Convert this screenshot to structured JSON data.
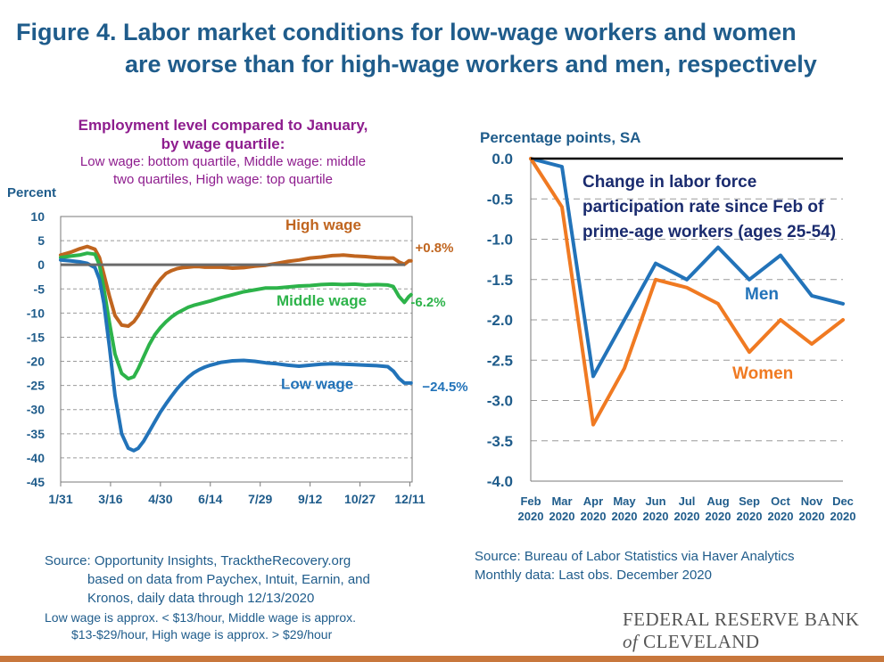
{
  "figure": {
    "title_line1": "Figure 4. Labor market conditions for low-wage workers and women",
    "title_line2": "are worse than for high-wage workers and men, respectively",
    "left_title_1": "Employment level compared to January,",
    "left_title_2": "by wage quartile:",
    "left_subtitle_1": "Low wage: bottom quartile, Middle wage: middle",
    "left_subtitle_2": "two quartiles, High wage: top quartile",
    "left_source_1": "Source: Opportunity Insights, TracktheRecovery.org",
    "left_source_2": "based on data from Paychex, Intuit, Earnin, and",
    "left_source_3": "Kronos, daily data through 12/13/2020",
    "left_note_1": "Low wage is approx. < $13/hour, Middle wage is approx.",
    "left_note_2": "$13-$29/hour, High wage is approx. > $29/hour",
    "right_source_1": "Source: Bureau of Labor Statistics via Haver Analytics",
    "right_source_2": "Monthly data: Last obs. December 2020",
    "logo_line1": "FEDERAL RESERVE BANK",
    "logo_of": "of",
    "logo_line2": "CLEVELAND",
    "colors": {
      "title": "#1f5c8b",
      "subtitle": "#8e1d8e",
      "high": "#c0651f",
      "middle": "#2db34a",
      "low": "#2273b9",
      "men": "#2273b9",
      "women": "#f07a22",
      "bar": "#c8773c"
    }
  },
  "chart_data": [
    {
      "type": "line",
      "ylabel": "Percent",
      "ylim": [
        -45,
        10
      ],
      "yticks": [
        10,
        5,
        0,
        -5,
        -10,
        -15,
        -20,
        -25,
        -30,
        -35,
        -40,
        -45
      ],
      "x_tick_labels": [
        "1/31",
        "3/16",
        "4/30",
        "6/14",
        "7/29",
        "9/12",
        "10/27",
        "12/11"
      ],
      "x_tick_days": [
        31,
        76,
        121,
        166,
        211,
        256,
        301,
        346
      ],
      "xlim_days": [
        31,
        348
      ],
      "grid": true,
      "series": [
        {
          "name": "High wage",
          "end_label": "+0.8%",
          "x": [
            31,
            40,
            48,
            55,
            62,
            66,
            70,
            75,
            80,
            86,
            92,
            97,
            101,
            106,
            111,
            116,
            121,
            126,
            131,
            136,
            141,
            146,
            151,
            156,
            161,
            166,
            176,
            186,
            196,
            206,
            216,
            226,
            236,
            246,
            256,
            266,
            276,
            286,
            296,
            306,
            316,
            326,
            331,
            336,
            341,
            345,
            347
          ],
          "y": [
            2,
            2.6,
            3.3,
            3.8,
            3.2,
            1.5,
            -2,
            -6.5,
            -10.5,
            -12.5,
            -12.7,
            -11.8,
            -10.5,
            -8.5,
            -6.5,
            -4.5,
            -3,
            -1.8,
            -1.2,
            -0.8,
            -0.6,
            -0.5,
            -0.4,
            -0.4,
            -0.5,
            -0.5,
            -0.5,
            -0.7,
            -0.6,
            -0.3,
            -0.1,
            0.3,
            0.7,
            1,
            1.4,
            1.6,
            1.9,
            2,
            1.8,
            1.7,
            1.5,
            1.4,
            1.4,
            0.6,
            0.1,
            0.8,
            0.8
          ]
        },
        {
          "name": "Middle wage",
          "end_label": "-6.2%",
          "x": [
            31,
            40,
            48,
            55,
            62,
            66,
            70,
            75,
            80,
            86,
            92,
            97,
            101,
            106,
            111,
            116,
            121,
            126,
            131,
            136,
            141,
            146,
            151,
            156,
            161,
            166,
            176,
            186,
            196,
            206,
            216,
            226,
            236,
            246,
            256,
            266,
            276,
            286,
            296,
            306,
            316,
            326,
            331,
            336,
            341,
            345,
            347
          ],
          "y": [
            1.5,
            1.8,
            2,
            2.4,
            2.2,
            0,
            -5,
            -12,
            -18.5,
            -22.5,
            -23.6,
            -23.2,
            -21.5,
            -19,
            -16.5,
            -14.5,
            -13,
            -11.8,
            -10.8,
            -10,
            -9.4,
            -8.8,
            -8.4,
            -8.1,
            -7.8,
            -7.5,
            -6.8,
            -6.2,
            -5.6,
            -5.2,
            -4.8,
            -4.8,
            -4.6,
            -4.4,
            -4.3,
            -4.1,
            -4,
            -4.1,
            -4,
            -4.2,
            -4.1,
            -4.2,
            -4.5,
            -6.5,
            -7.8,
            -6.6,
            -6.2
          ]
        },
        {
          "name": "Low wage",
          "end_label": "−24.5%",
          "x": [
            31,
            40,
            48,
            55,
            62,
            66,
            70,
            75,
            80,
            86,
            92,
            97,
            101,
            106,
            111,
            116,
            121,
            126,
            131,
            136,
            141,
            146,
            151,
            156,
            161,
            166,
            176,
            186,
            196,
            206,
            216,
            226,
            236,
            246,
            256,
            266,
            276,
            286,
            296,
            306,
            316,
            326,
            331,
            336,
            341,
            345,
            347
          ],
          "y": [
            1,
            0.8,
            0.6,
            0.3,
            -0.6,
            -3,
            -8,
            -17,
            -27,
            -35,
            -38,
            -38.5,
            -38,
            -36.5,
            -34.5,
            -32.5,
            -30.5,
            -28.8,
            -27.2,
            -25.7,
            -24.4,
            -23.3,
            -22.4,
            -21.7,
            -21.2,
            -20.8,
            -20.2,
            -19.9,
            -19.8,
            -20,
            -20.3,
            -20.5,
            -20.8,
            -21,
            -20.8,
            -20.6,
            -20.5,
            -20.6,
            -20.7,
            -20.8,
            -20.9,
            -21.1,
            -22,
            -23.5,
            -24.5,
            -24.5,
            -24.5
          ]
        }
      ]
    },
    {
      "type": "line",
      "ylabel": "Percentage points, SA",
      "annotation_lines": [
        "Change in labor force",
        "participation rate since Feb of",
        "prime-age workers (ages 25-54)"
      ],
      "ylim": [
        -4.0,
        0.0
      ],
      "yticks": [
        "0.0",
        "-0.5",
        "-1.0",
        "-1.5",
        "-2.0",
        "-2.5",
        "-3.0",
        "-3.5",
        "-4.0"
      ],
      "categories_month": [
        "Feb",
        "Mar",
        "Apr",
        "May",
        "Jun",
        "Jul",
        "Aug",
        "Sep",
        "Oct",
        "Nov",
        "Dec"
      ],
      "categories_year": [
        "2020",
        "2020",
        "2020",
        "2020",
        "2020",
        "2020",
        "2020",
        "2020",
        "2020",
        "2020",
        "2020"
      ],
      "grid": true,
      "series": [
        {
          "name": "Men",
          "values": [
            0.0,
            -0.1,
            -2.7,
            -2.0,
            -1.3,
            -1.5,
            -1.1,
            -1.5,
            -1.2,
            -1.7,
            -1.8
          ]
        },
        {
          "name": "Women",
          "values": [
            0.0,
            -0.6,
            -3.3,
            -2.6,
            -1.5,
            -1.6,
            -1.8,
            -2.4,
            -2.0,
            -2.3,
            -2.0
          ]
        }
      ]
    }
  ]
}
